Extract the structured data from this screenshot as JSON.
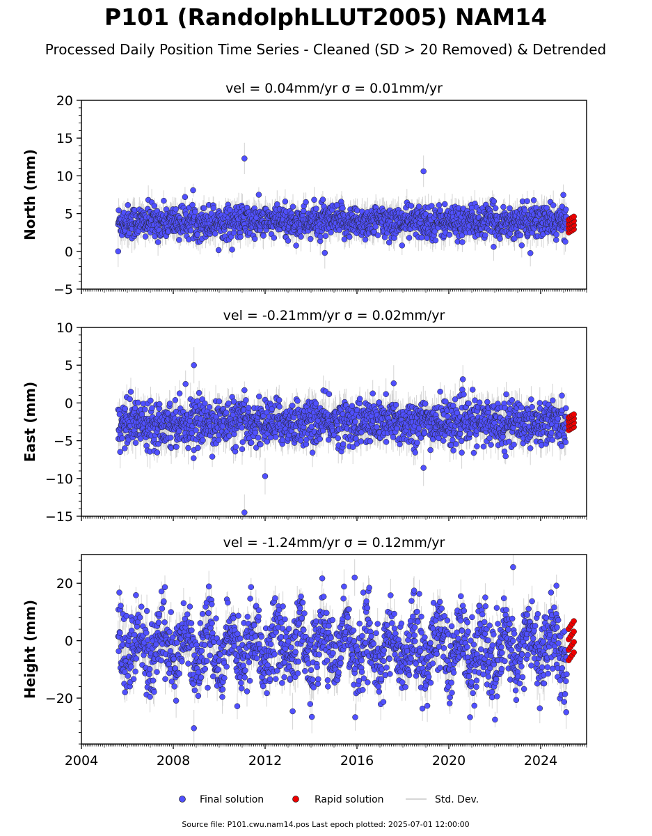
{
  "figure": {
    "title": "P101 (RandolphLLUT2005) NAM14",
    "subtitle": "Processed Daily Position Time Series - Cleaned (SD > 20 Removed) & Detrended",
    "footer": "Source file: P101.cwu.nam14.pos  Last epoch plotted: 2025-07-01 12:00:00"
  },
  "legend": {
    "final": "Final solution",
    "rapid": "Rapid solution",
    "sd": "Std. Dev."
  },
  "colors": {
    "final": "#5050ff",
    "rapid": "#ee0000",
    "sd": "#b0b0b0",
    "edge": "#222222"
  },
  "chart_data": [
    {
      "type": "scatter",
      "title": "vel = 0.04mm/yr   σ = 0.01mm/yr",
      "ylabel": "North (mm)",
      "xlim": [
        2004.0,
        2026.0
      ],
      "ylim": [
        -5,
        20
      ],
      "yticks": [
        "20",
        "15",
        "10",
        "5",
        "0",
        "−5"
      ],
      "ytick_values": [
        20,
        15,
        10,
        5,
        0,
        -5
      ],
      "series_summary": {
        "start": 2005.6,
        "end": 2025.15,
        "mean": 3.9,
        "std": 1.1,
        "sd": 1.3
      },
      "outliers": [
        [
          2011.1,
          12.3
        ],
        [
          2018.9,
          10.6
        ],
        [
          2005.6,
          0.0
        ],
        [
          2014.6,
          -0.2
        ]
      ],
      "rapid": {
        "start": 2025.2,
        "end": 2025.5,
        "min": 2.5,
        "max": 4.6
      }
    },
    {
      "type": "scatter",
      "title": "vel = -0.21mm/yr   σ = 0.02mm/yr",
      "ylabel": "East (mm)",
      "xlim": [
        2004.0,
        2026.0
      ],
      "ylim": [
        -15,
        10
      ],
      "yticks": [
        "10",
        "5",
        "0",
        "−5",
        "−10",
        "−15"
      ],
      "ytick_values": [
        10,
        5,
        0,
        -5,
        -10,
        -15
      ],
      "series_summary": {
        "start": 2005.6,
        "end": 2025.15,
        "mean": -2.6,
        "std": 1.5,
        "sd": 1.5
      },
      "outliers": [
        [
          2008.9,
          5.0
        ],
        [
          2011.1,
          -14.5
        ],
        [
          2012.0,
          -9.7
        ],
        [
          2018.9,
          -8.6
        ],
        [
          2017.6,
          2.6
        ]
      ],
      "rapid": {
        "start": 2025.2,
        "end": 2025.5,
        "min": -3.6,
        "max": -1.5
      }
    },
    {
      "type": "scatter",
      "title": "vel = -1.24mm/yr   σ = 0.12mm/yr",
      "ylabel": "Height (mm)",
      "xlim": [
        2004.0,
        2026.0
      ],
      "ylim": [
        -36,
        30
      ],
      "yticks": [
        "20",
        "0",
        "−20"
      ],
      "ytick_values": [
        20,
        0,
        -20
      ],
      "series_summary": {
        "start": 2005.6,
        "end": 2025.15,
        "mean": -2.5,
        "std": 6.5,
        "sd": 4.0,
        "seasonal_amp": 6.0
      },
      "outliers": [
        [
          2008.9,
          -30.5
        ],
        [
          2022.8,
          25.6
        ],
        [
          2015.9,
          22.0
        ],
        [
          2013.2,
          -24.6
        ]
      ],
      "rapid": {
        "start": 2025.2,
        "end": 2025.5,
        "min": -6.8,
        "max": 6.8
      },
      "xticks": [
        "2004",
        "2008",
        "2012",
        "2016",
        "2020",
        "2024"
      ],
      "xtick_values": [
        2004,
        2008,
        2012,
        2016,
        2020,
        2024
      ]
    }
  ]
}
